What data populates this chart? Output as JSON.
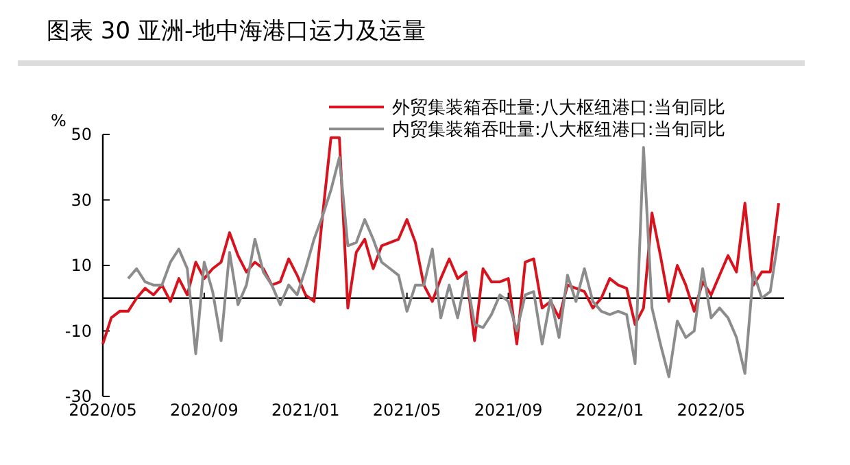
{
  "chart_data": {
    "type": "line",
    "title": "图表 30 亚洲-地中海港口运力及运量",
    "ylabel": "%",
    "categories": [
      "2020/05",
      null,
      null,
      null,
      null,
      null,
      null,
      null,
      null,
      null,
      null,
      null,
      "2020/09",
      null,
      null,
      null,
      null,
      null,
      null,
      null,
      null,
      null,
      null,
      null,
      "2021/01",
      null,
      null,
      null,
      null,
      null,
      null,
      null,
      null,
      null,
      null,
      null,
      "2021/05",
      null,
      null,
      null,
      null,
      null,
      null,
      null,
      null,
      null,
      null,
      null,
      "2021/09",
      null,
      null,
      null,
      null,
      null,
      null,
      null,
      null,
      null,
      null,
      null,
      "2022/01",
      null,
      null,
      null,
      null,
      null,
      null,
      null,
      null,
      null,
      null,
      null,
      "2022/05",
      null,
      null,
      null,
      null,
      null,
      null,
      null,
      null
    ],
    "series": [
      {
        "name": "外贸集装箱吞吐量:八大枢纽港口:当旬同比",
        "color": "#d7141e",
        "values": [
          -14,
          -6,
          -4,
          -4,
          0,
          3,
          1,
          4,
          -1,
          6,
          1,
          11,
          6,
          9,
          11,
          20,
          13,
          8,
          11,
          9,
          4,
          5,
          12,
          7,
          1,
          -1,
          25,
          49,
          49,
          -3,
          14,
          18,
          9,
          16,
          17,
          18,
          24,
          17,
          4,
          -1,
          6,
          12,
          6,
          8,
          -13,
          9,
          5,
          5,
          6,
          -14,
          11,
          12,
          -3,
          -1,
          -6,
          4,
          3,
          2,
          -3,
          0,
          6,
          4,
          3,
          -8,
          -3,
          26,
          13,
          -1,
          10,
          4,
          -4,
          5,
          1,
          7,
          13,
          8,
          29,
          4,
          8,
          8,
          29
        ]
      },
      {
        "name": "内贸集装箱吞吐量:八大枢纽港口:当旬同比",
        "color": "#8c8c8c",
        "values": [
          null,
          null,
          null,
          6,
          9,
          5,
          4,
          4,
          11,
          15,
          9,
          -17,
          11,
          2,
          -13,
          14,
          -2,
          4,
          18,
          8,
          4,
          -2,
          4,
          1,
          9,
          18,
          25,
          33,
          43,
          16,
          17,
          24,
          18,
          11,
          9,
          7,
          -4,
          4,
          4,
          15,
          -6,
          4,
          -6,
          7,
          -8,
          -9,
          -5,
          1,
          -1,
          -10,
          1,
          2,
          -14,
          0,
          -12,
          7,
          -1,
          9,
          -1,
          -4,
          -5,
          -4,
          -5,
          -20,
          46,
          -3,
          -14,
          -24,
          -7,
          -12,
          -10,
          9,
          -6,
          -3,
          -6,
          -12,
          -23,
          8,
          0,
          2,
          19
        ]
      }
    ],
    "ylim": [
      -30,
      50
    ],
    "yticks": [
      -30,
      -10,
      10,
      30,
      50
    ],
    "legend": "top",
    "grid": false
  }
}
